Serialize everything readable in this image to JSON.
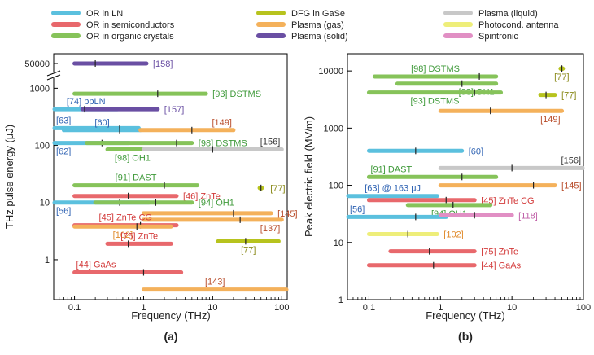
{
  "legend": [
    {
      "label": "OR in LN",
      "color": "#5bc0de"
    },
    {
      "label": "OR in semiconductors",
      "color": "#e8686c"
    },
    {
      "label": "OR in organic crystals",
      "color": "#86c35a"
    },
    {
      "label": "DFG in GaSe",
      "color": "#b7c31e"
    },
    {
      "label": "Plasma (gas)",
      "color": "#f4b15b"
    },
    {
      "label": "Plasma (solid)",
      "color": "#6a4fa3"
    },
    {
      "label": "Plasma (liquid)",
      "color": "#c8c8c8"
    },
    {
      "label": "Photocond. antenna",
      "color": "#eeee7a"
    },
    {
      "label": "Spintronic",
      "color": "#e18fc4"
    }
  ],
  "chart_data": [
    {
      "type": "bar",
      "panel_label": "(a)",
      "xlabel": "Frequency (THz)",
      "ylabel": "THz pulse energy (μJ)",
      "x_scale": "log",
      "y_scale": "log",
      "xlim": [
        0.05,
        120
      ],
      "ylim": [
        0.2,
        50000
      ],
      "y_axis_break": [
        1500,
        40000
      ],
      "grid": false,
      "legend_position": "top",
      "x_ticks": [
        "0.1",
        "1",
        "10",
        "100"
      ],
      "y_ticks": [
        "1",
        "10",
        "100",
        "1000",
        "50000"
      ],
      "series": [
        {
          "class": "Plasma (solid)",
          "x_range": [
            0.1,
            1.1
          ],
          "marker": 0.2,
          "y": 50000,
          "label": "[158]",
          "label_color": "#6a4fa3",
          "label_side": "right"
        },
        {
          "class": "OR in organic crystals",
          "x_range": [
            0.1,
            8
          ],
          "marker": 1.6,
          "y": 800,
          "label": "[93] DSTMS",
          "label_color": "#3f9a3a",
          "label_side": "right"
        },
        {
          "class": "OR in LN",
          "x_range": [
            0.05,
            0.42
          ],
          "marker": null,
          "y": 430,
          "label": "[74] ppLN",
          "label_color": "#2f63b3",
          "label_side": "above"
        },
        {
          "class": "Plasma (solid)",
          "x_range": [
            0.13,
            1.6
          ],
          "marker": 0.14,
          "y": 430,
          "label": "[157]",
          "label_color": "#6a4fa3",
          "label_side": "right"
        },
        {
          "class": "OR in LN",
          "x_range": [
            0.05,
            0.85
          ],
          "marker": 0.45,
          "y": 200,
          "label": "[63]",
          "label_color": "#2f63b3",
          "label_side": "above-left"
        },
        {
          "class": "OR in LN",
          "x_range": [
            0.07,
            0.9
          ],
          "marker": 0.45,
          "y": 185,
          "label": "[60]",
          "label_color": "#2f63b3",
          "label_side": "above"
        },
        {
          "class": "Plasma (gas)",
          "x_range": [
            0.9,
            20
          ],
          "marker": 5,
          "y": 185,
          "label": "[149]",
          "label_color": "#b84c2a",
          "label_side": "above-right"
        },
        {
          "class": "OR in LN",
          "x_range": [
            0.05,
            0.62
          ],
          "marker": 0.25,
          "y": 110,
          "label": "[62]",
          "label_color": "#2f63b3",
          "label_side": "below-left"
        },
        {
          "class": "OR in organic crystals",
          "x_range": [
            0.15,
            5
          ],
          "marker": 3,
          "y": 110,
          "label": "[98] DSTMS",
          "label_color": "#3f9a3a",
          "label_side": "right"
        },
        {
          "class": "OR in organic crystals",
          "x_range": [
            0.3,
            1.6
          ],
          "marker": null,
          "y": 85,
          "label": "[98] OH1",
          "label_color": "#3f9a3a",
          "label_side": "below"
        },
        {
          "class": "Plasma (liquid)",
          "x_range": [
            1.0,
            100
          ],
          "marker": 10,
          "y": 85,
          "label": "[156]",
          "label_color": "#333333",
          "label_side": "above-right"
        },
        {
          "class": "OR in organic crystals",
          "x_range": [
            0.1,
            6
          ],
          "marker": 2,
          "y": 20,
          "label": "[91] DAST",
          "label_color": "#3f9a3a",
          "label_side": "above"
        },
        {
          "class": "DFG in GaSe",
          "x_range": [
            45,
            55
          ],
          "marker": 50,
          "y": 18,
          "label": "[77]",
          "label_color": "#8a8a1a",
          "label_side": "right"
        },
        {
          "class": "OR in semiconductors",
          "x_range": [
            0.1,
            3
          ],
          "marker": 0.6,
          "y": 13,
          "label": "[46] ZnTe",
          "label_color": "#d33a3a",
          "label_side": "right"
        },
        {
          "class": "OR in LN",
          "x_range": [
            0.05,
            1.2
          ],
          "marker": 0.45,
          "y": 10,
          "label": "[56]",
          "label_color": "#2f63b3",
          "label_side": "below-left"
        },
        {
          "class": "OR in organic crystals",
          "x_range": [
            0.2,
            5
          ],
          "marker": 1.5,
          "y": 10,
          "label": "[94] OH1",
          "label_color": "#3f9a3a",
          "label_side": "right"
        },
        {
          "class": "Plasma (gas)",
          "x_range": [
            1.0,
            70
          ],
          "marker": 20,
          "y": 6.5,
          "label": "[145]",
          "label_color": "#b84c2a",
          "label_side": "right"
        },
        {
          "class": "Plasma (gas)",
          "x_range": [
            1.0,
            100
          ],
          "marker": 25,
          "y": 5.0,
          "label": "[137]",
          "label_color": "#b84c2a",
          "label_side": "below-right"
        },
        {
          "class": "OR in semiconductors",
          "x_range": [
            0.1,
            3
          ],
          "marker": 0.9,
          "y": 4.0,
          "label": "[45] ZnTe CG",
          "label_color": "#d33a3a",
          "label_side": "above"
        },
        {
          "class": "Plasma (gas)",
          "x_range": [
            0.1,
            2.5
          ],
          "marker": 0.8,
          "y": 3.8,
          "label": "[102]",
          "label_color": "#e08a2a",
          "label_side": "below"
        },
        {
          "class": "DFG in GaSe",
          "x_range": [
            12,
            90
          ],
          "marker": 30,
          "y": 2.1,
          "label": "[77]",
          "label_color": "#8a8a1a",
          "label_side": "below"
        },
        {
          "class": "OR in semiconductors",
          "x_range": [
            0.3,
            2.5
          ],
          "marker": 0.6,
          "y": 1.9,
          "label": "[75] ZnTe",
          "label_color": "#d33a3a",
          "label_side": "above"
        },
        {
          "class": "OR in semiconductors",
          "x_range": [
            0.1,
            3.5
          ],
          "marker": 1.0,
          "y": 0.6,
          "label": "[44] GaAs",
          "label_color": "#d33a3a",
          "label_side": "above-left"
        },
        {
          "class": "Plasma (gas)",
          "x_range": [
            1.0,
            120
          ],
          "marker": null,
          "y": 0.3,
          "label": "[143]",
          "label_color": "#b84c2a",
          "label_side": "above"
        }
      ]
    },
    {
      "type": "bar",
      "panel_label": "(b)",
      "xlabel": "Frequency (THz)",
      "ylabel": "Peak electric field (MV/m)",
      "x_scale": "log",
      "y_scale": "log",
      "xlim": [
        0.05,
        100
      ],
      "ylim": [
        1,
        20000
      ],
      "grid": false,
      "x_ticks": [
        "0.1",
        "1",
        "10",
        "100"
      ],
      "y_ticks": [
        "1",
        "10",
        "100",
        "1000",
        "10000"
      ],
      "series": [
        {
          "class": "OR in organic crystals",
          "x_range": [
            0.12,
            6
          ],
          "marker": 3.5,
          "y": 8000,
          "label": "[98] DSTMS",
          "label_color": "#3f9a3a",
          "label_side": "above"
        },
        {
          "class": "DFG in GaSe",
          "x_range": [
            45,
            55
          ],
          "marker": 50,
          "y": 11000,
          "label": "[77]",
          "label_color": "#8a8a1a",
          "label_side": "below"
        },
        {
          "class": "OR in organic crystals",
          "x_range": [
            0.25,
            6
          ],
          "marker": 2,
          "y": 6000,
          "label": "[98] OH1",
          "label_color": "#3f9a3a",
          "label_side": "below-right"
        },
        {
          "class": "OR in organic crystals",
          "x_range": [
            0.1,
            7
          ],
          "marker": 3,
          "y": 4200,
          "label": "[93] DSTMS",
          "label_color": "#3f9a3a",
          "label_side": "below"
        },
        {
          "class": "DFG in GaSe",
          "x_range": [
            25,
            40
          ],
          "marker": 30,
          "y": 3800,
          "label": "[77]",
          "label_color": "#8a8a1a",
          "label_side": "right"
        },
        {
          "class": "Plasma (gas)",
          "x_range": [
            1.0,
            50
          ],
          "marker": 5,
          "y": 2000,
          "label": "[149]",
          "label_color": "#b84c2a",
          "label_side": "below-right"
        },
        {
          "class": "OR in LN",
          "x_range": [
            0.1,
            2
          ],
          "marker": 0.45,
          "y": 400,
          "label": "[60]",
          "label_color": "#2f63b3",
          "label_side": "right"
        },
        {
          "class": "Plasma (liquid)",
          "x_range": [
            1.0,
            100
          ],
          "marker": 10,
          "y": 200,
          "label": "[156]",
          "label_color": "#333333",
          "label_side": "above-right"
        },
        {
          "class": "OR in organic crystals",
          "x_range": [
            0.1,
            6
          ],
          "marker": 2,
          "y": 140,
          "label": "[91] DAST",
          "label_color": "#3f9a3a",
          "label_side": "above-left"
        },
        {
          "class": "Plasma (gas)",
          "x_range": [
            1.0,
            40
          ],
          "marker": 20,
          "y": 100,
          "label": "[145]",
          "label_color": "#b84c2a",
          "label_side": "right"
        },
        {
          "class": "OR in LN",
          "x_range": [
            0.05,
            0.9
          ],
          "marker": null,
          "y": 65,
          "label": "[63] @ 163 μJ",
          "label_color": "#2f63b3",
          "label_side": "above"
        },
        {
          "class": "OR in semiconductors",
          "x_range": [
            0.1,
            3
          ],
          "marker": 1.2,
          "y": 55,
          "label": "[45] ZnTe CG",
          "label_color": "#d33a3a",
          "label_side": "right"
        },
        {
          "class": "OR in organic crystals",
          "x_range": [
            0.35,
            5
          ],
          "marker": 1.5,
          "y": 45,
          "label": "[94] OH1",
          "label_color": "#3f9a3a",
          "label_side": "below"
        },
        {
          "class": "OR in LN",
          "x_range": [
            0.05,
            1.2
          ],
          "marker": 0.45,
          "y": 28,
          "label": "[56]",
          "label_color": "#2f63b3",
          "label_side": "above-left"
        },
        {
          "class": "Spintronic",
          "x_range": [
            1.0,
            10
          ],
          "marker": 3,
          "y": 30,
          "label": "[118]",
          "label_color": "#c060a8",
          "label_side": "right"
        },
        {
          "class": "Photocond. antenna",
          "x_range": [
            0.1,
            0.9
          ],
          "marker": 0.35,
          "y": 14,
          "label": "[102]",
          "label_color": "#e08a2a",
          "label_side": "right"
        },
        {
          "class": "OR in semiconductors",
          "x_range": [
            0.2,
            3
          ],
          "marker": 0.7,
          "y": 7,
          "label": "[75] ZnTe",
          "label_color": "#d33a3a",
          "label_side": "right"
        },
        {
          "class": "OR in semiconductors",
          "x_range": [
            0.1,
            3
          ],
          "marker": 0.8,
          "y": 4,
          "label": "[44] GaAs",
          "label_color": "#d33a3a",
          "label_side": "right"
        }
      ]
    }
  ]
}
